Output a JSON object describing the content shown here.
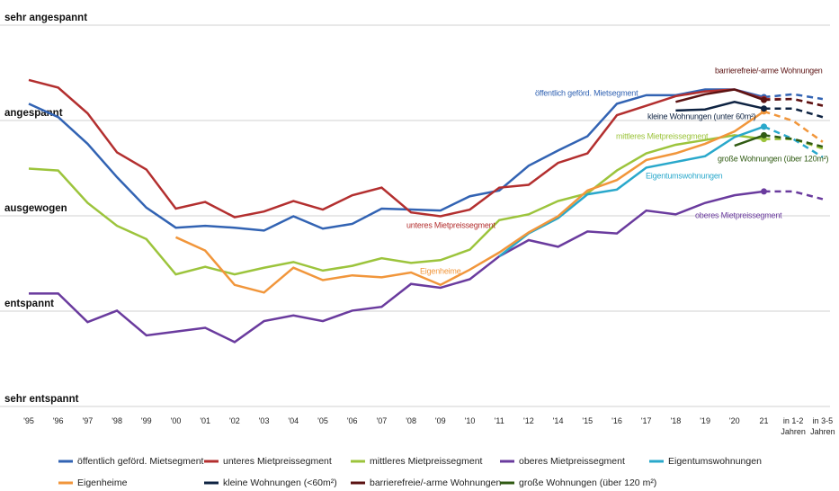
{
  "chart_data": {
    "type": "line",
    "categories": [
      "'95",
      "'96",
      "'97",
      "'98",
      "'99",
      "'00",
      "'01",
      "'02",
      "'03",
      "'04",
      "'05",
      "'06",
      "'07",
      "'08",
      "'09",
      "'10",
      "'11",
      "'12",
      "'14",
      "'15",
      "'16",
      "'17",
      "'18",
      "'19",
      "'20",
      "21",
      "in 1-2 Jahren",
      "in 3-5 Jahren"
    ],
    "ylim": [
      1,
      5
    ],
    "yticks": [
      {
        "value": 1,
        "label": "sehr entspannt"
      },
      {
        "value": 2,
        "label": "entspannt"
      },
      {
        "value": 3,
        "label": "ausgewogen"
      },
      {
        "value": 4,
        "label": "angespannt"
      },
      {
        "value": 5,
        "label": "sehr angespannt"
      }
    ],
    "grid": true,
    "dashed_from": 25,
    "series": [
      {
        "name": "öffentlich geförd. Mietsegment",
        "color": "#3263b3",
        "values": [
          4.1,
          3.96,
          3.68,
          3.33,
          3.01,
          2.8,
          2.82,
          2.8,
          2.77,
          2.92,
          2.79,
          2.84,
          3.0,
          2.99,
          2.98,
          3.13,
          3.19,
          3.45,
          3.61,
          3.76,
          4.1,
          4.19,
          4.19,
          4.25,
          4.25,
          4.17,
          4.2,
          4.15
        ]
      },
      {
        "name": "unteres Mietpreissegment",
        "color": "#b32f2f",
        "values": [
          4.35,
          4.27,
          4.0,
          3.59,
          3.41,
          3.0,
          3.07,
          2.91,
          2.97,
          3.08,
          2.99,
          3.14,
          3.22,
          2.96,
          2.92,
          2.99,
          3.22,
          3.25,
          3.48,
          3.58,
          3.98,
          4.08,
          4.18,
          4.23,
          4.25,
          4.15,
          4.15,
          4.08
        ]
      },
      {
        "name": "mittleres Mietpreissegment",
        "color": "#9cc43c",
        "values": [
          3.42,
          3.4,
          3.06,
          2.82,
          2.68,
          2.31,
          2.39,
          2.31,
          2.38,
          2.44,
          2.35,
          2.4,
          2.48,
          2.43,
          2.46,
          2.57,
          2.88,
          2.94,
          3.08,
          3.16,
          3.4,
          3.58,
          3.67,
          3.72,
          3.77,
          3.73,
          3.73,
          3.63
        ]
      },
      {
        "name": "oberes Mietpreissegment",
        "color": "#6a3b9e",
        "values": [
          2.11,
          2.11,
          1.81,
          1.93,
          1.67,
          1.71,
          1.75,
          1.6,
          1.82,
          1.88,
          1.82,
          1.93,
          1.97,
          2.21,
          2.17,
          2.26,
          2.5,
          2.67,
          2.6,
          2.76,
          2.74,
          2.98,
          2.94,
          3.06,
          3.14,
          3.18,
          3.18,
          3.1
        ]
      },
      {
        "name": "Eigentumswohnungen",
        "color": "#29a8cb",
        "values": [
          null,
          null,
          null,
          null,
          null,
          null,
          null,
          null,
          null,
          null,
          null,
          null,
          null,
          null,
          null,
          null,
          2.5,
          2.74,
          2.9,
          3.15,
          3.2,
          3.43,
          3.49,
          3.55,
          3.75,
          3.86,
          3.73,
          3.54
        ]
      },
      {
        "name": "Eigenheime",
        "color": "#f1963b",
        "values": [
          null,
          null,
          null,
          null,
          null,
          2.7,
          2.56,
          2.2,
          2.12,
          2.38,
          2.25,
          2.3,
          2.28,
          2.33,
          2.2,
          2.36,
          2.54,
          2.75,
          2.92,
          3.19,
          3.3,
          3.51,
          3.58,
          3.68,
          3.81,
          4.02,
          3.92,
          3.7
        ]
      },
      {
        "name": "kleine Wohnungen (<60m²)",
        "color": "#0e2342",
        "values": [
          null,
          null,
          null,
          null,
          null,
          null,
          null,
          null,
          null,
          null,
          null,
          null,
          null,
          null,
          null,
          null,
          null,
          null,
          null,
          null,
          null,
          null,
          4.03,
          4.04,
          4.12,
          4.05,
          4.05,
          3.96
        ]
      },
      {
        "name": "barrierefreie/-arme Wohnungen",
        "color": "#5b1212",
        "values": [
          null,
          null,
          null,
          null,
          null,
          null,
          null,
          null,
          null,
          null,
          null,
          null,
          null,
          null,
          null,
          null,
          null,
          null,
          null,
          null,
          null,
          null,
          4.12,
          4.2,
          4.25,
          4.14,
          4.15,
          4.08
        ]
      },
      {
        "name": "große Wohnungen (über 120 m²)",
        "color": "#305b13",
        "values": [
          null,
          null,
          null,
          null,
          null,
          null,
          null,
          null,
          null,
          null,
          null,
          null,
          null,
          null,
          null,
          null,
          null,
          null,
          null,
          null,
          null,
          null,
          null,
          null,
          3.66,
          3.77,
          3.73,
          3.65
        ]
      }
    ],
    "annotations": [
      "öffentlich geförd. Mietsegment",
      "barrierefreie/-arme Wohnungen",
      "kleine Wohnungen (unter 60m²)",
      "mittleres Mietpreissegment",
      "große Wohnungen (über 120m²)",
      "Eigentumswohnungen",
      "unteres Mietpreissegment",
      "oberes Mietpreissegment",
      "Eigenheime"
    ]
  }
}
